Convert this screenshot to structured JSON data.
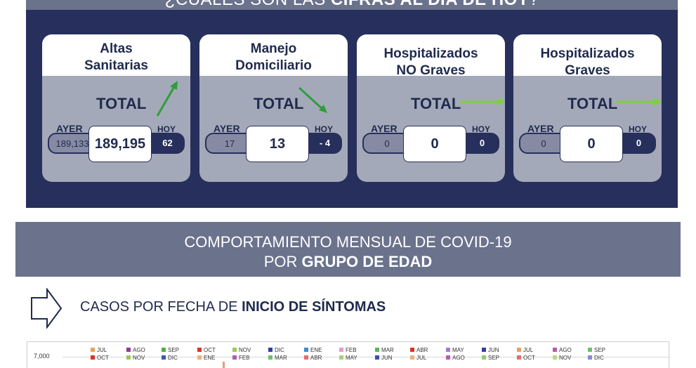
{
  "top": {
    "title_prefix": "¿CUÁLES SON LAS ",
    "title_bold": "CIFRAS AL DÍA DE HOY",
    "title_suffix": "?"
  },
  "labels": {
    "total": "TOTAL",
    "ayer": "AYER",
    "hoy": "HOY"
  },
  "cards": [
    {
      "title": "Altas\nSanitarias",
      "ayer": "189,133",
      "total": "189,195",
      "hoy": "62",
      "trend": "up",
      "color_arrow": "#2e9e3a"
    },
    {
      "title": "Manejo\nDomiciliario",
      "ayer": "17",
      "total": "13",
      "hoy": "- 4",
      "trend": "down",
      "color_arrow": "#2e9e3a"
    },
    {
      "title": "Hospitalizados\nNO Graves",
      "ayer": "0",
      "total": "0",
      "hoy": "0",
      "trend": "flat",
      "color_arrow": "#7fce3e"
    },
    {
      "title": "Hospitalizados\nGraves",
      "ayer": "0",
      "total": "0",
      "hoy": "0",
      "trend": "flat",
      "color_arrow": "#7fce3e"
    }
  ],
  "section_header": {
    "line1": "COMPORTAMIENTO MENSUAL DE COVID-19",
    "line2_prefix": "POR ",
    "line2_bold": "GRUPO DE EDAD"
  },
  "subsection": {
    "title_prefix": "CASOS POR FECHA DE ",
    "title_bold": "INICIO  DE SÍNTOMAS",
    "icon": "arrow-right-outline-icon"
  },
  "chart": {
    "y_tick": "7,000",
    "legend_row1": [
      {
        "label": "JUL",
        "color": "#e6a35a"
      },
      {
        "label": "AGO",
        "color": "#8e3a98"
      },
      {
        "label": "SEP",
        "color": "#4fae4a"
      },
      {
        "label": "OCT",
        "color": "#d9342b"
      },
      {
        "label": "NOV",
        "color": "#9acb5b"
      },
      {
        "label": "DIC",
        "color": "#2f3f9b"
      },
      {
        "label": "ENE",
        "color": "#3c8fd0"
      },
      {
        "label": "FEB",
        "color": "#e59acb"
      },
      {
        "label": "MAR",
        "color": "#5bb45b"
      },
      {
        "label": "ABR",
        "color": "#d9342b"
      },
      {
        "label": "MAY",
        "color": "#a77bca"
      },
      {
        "label": "JUN",
        "color": "#2f3f9b"
      },
      {
        "label": "JUL",
        "color": "#e6a35a"
      },
      {
        "label": "AGO",
        "color": "#b55bb0"
      },
      {
        "label": "SEP",
        "color": "#6cc06c"
      }
    ],
    "legend_row2": [
      {
        "label": "OCT",
        "color": "#d9342b"
      },
      {
        "label": "NOV",
        "color": "#9acb5b"
      },
      {
        "label": "DIC",
        "color": "#3c5bb0"
      },
      {
        "label": "ENE",
        "color": "#f0b07a"
      },
      {
        "label": "FEB",
        "color": "#b05bb5"
      },
      {
        "label": "MAR",
        "color": "#6cc06c"
      },
      {
        "label": "ABR",
        "color": "#e86a6a"
      },
      {
        "label": "MAY",
        "color": "#a9d07a"
      },
      {
        "label": "JUN",
        "color": "#3c4fa8"
      },
      {
        "label": "JUL",
        "color": "#f0b07a"
      },
      {
        "label": "AGO",
        "color": "#b55bb0"
      },
      {
        "label": "SEP",
        "color": "#8ccf6c"
      },
      {
        "label": "OCT",
        "color": "#e86a6a"
      },
      {
        "label": "NOV",
        "color": "#b8d88a"
      },
      {
        "label": "DIC",
        "color": "#7d8fd0"
      }
    ]
  }
}
